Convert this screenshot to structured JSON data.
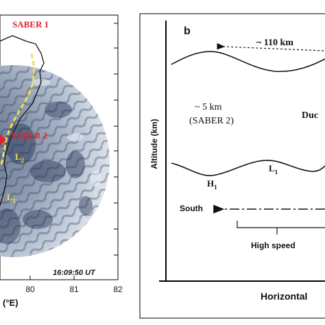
{
  "panel_a": {
    "labels": {
      "saber1": "SABER 1",
      "saber2": "SABER 2",
      "l2": "L",
      "l2_sub": "2",
      "l1": "L",
      "l1_sub": "1",
      "time": "16:09:50 UT",
      "xunit": "(°E)"
    },
    "x_ticks": [
      "80",
      "81",
      "82"
    ],
    "colors": {
      "saber_label": "#e0242c",
      "front_line": "#f2e14a",
      "coast": "#111111",
      "airglow_bg": "#b9c4d4"
    }
  },
  "panel_b": {
    "panel_label": "b",
    "ylabel": "Altitude (km)",
    "xlabel": "Horizontal",
    "wavelength": "~ 110 km",
    "thickness": "~ 5 km",
    "thickness_source": "(SABER 2)",
    "duct_text": "Duc",
    "h1": "H",
    "h1_sub": "1",
    "l1": "L",
    "l1_sub": "1",
    "south": "South",
    "high_speed": "High speed"
  }
}
